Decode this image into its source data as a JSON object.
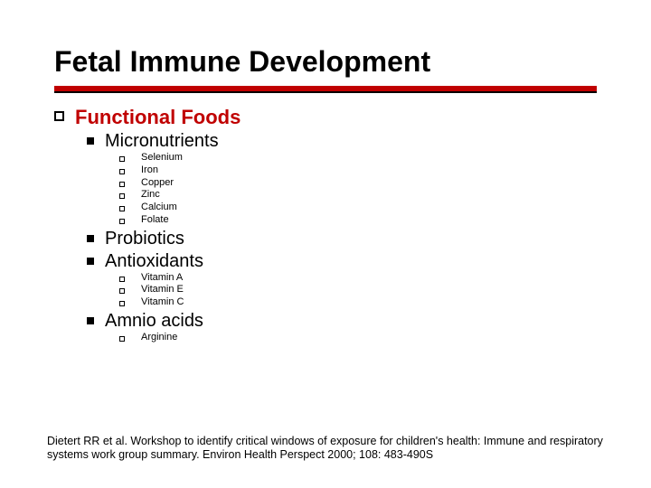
{
  "title": "Fetal Immune Development",
  "colors": {
    "accent": "#c00000",
    "text": "#000000",
    "background": "#ffffff"
  },
  "l1": {
    "label": "Functional Foods"
  },
  "l2": {
    "micronutrients": "Micronutrients",
    "probiotics": "Probiotics",
    "antioxidants": "Antioxidants",
    "amino": "Amnio acids"
  },
  "l3": {
    "selenium": "Selenium",
    "iron": "Iron",
    "copper": "Copper",
    "zinc": "Zinc",
    "calcium": "Calcium",
    "folate": "Folate",
    "vita": "Vitamin A",
    "vite": "Vitamin E",
    "vitc": "Vitamin C",
    "arginine": "Arginine"
  },
  "footer": "Dietert RR et al. Workshop to identify critical windows of exposure for children's health: Immune and respiratory systems work group summary. Environ Health Perspect 2000; 108: 483-490S"
}
